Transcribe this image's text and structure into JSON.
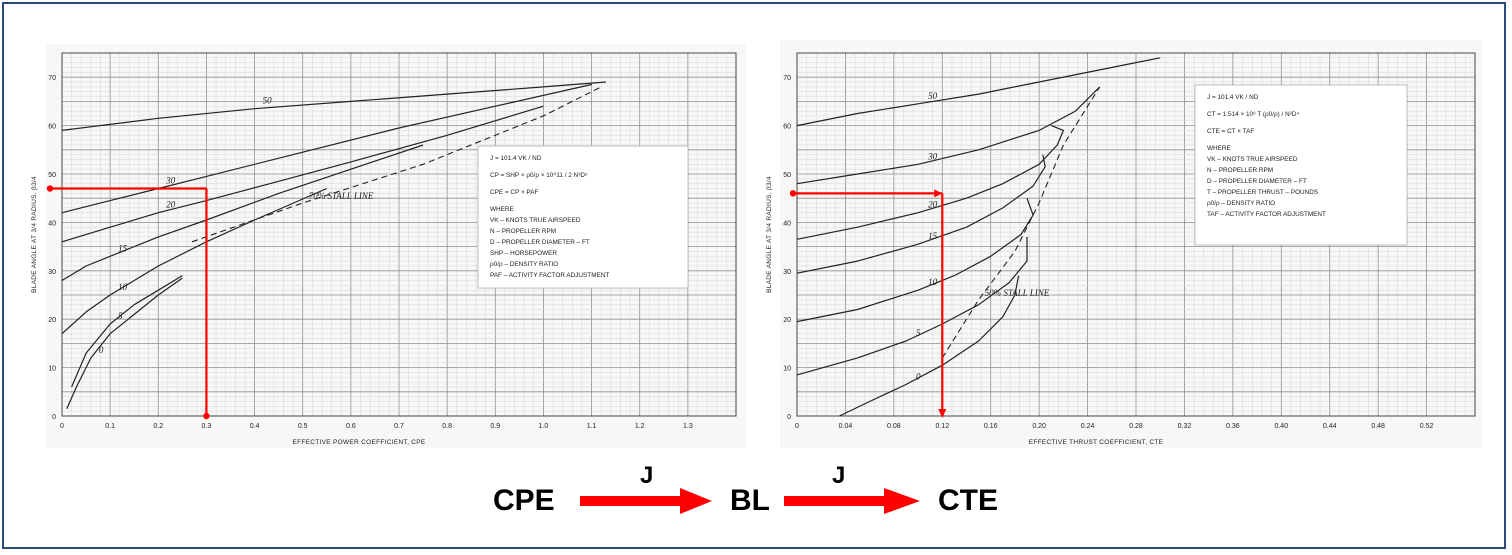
{
  "chart_data": [
    {
      "type": "line",
      "ylabel": "BLADE ANGLE AT 3/4 RADIUS, β3/4",
      "xlabel": "EFFECTIVE POWER COEFFICIENT, CPE",
      "xlim": [
        0,
        1.4
      ],
      "ylim": [
        0,
        75
      ],
      "x_ticks": [
        "0",
        "0.1",
        "0.2",
        "0.3",
        "0.4",
        "0.5",
        "0.6",
        "0.7",
        "0.8",
        "0.9",
        "1.0",
        "1.1",
        "1.2",
        "1.3"
      ],
      "y_ticks": [
        "0",
        "10",
        "20",
        "30",
        "40",
        "50",
        "60",
        "70"
      ],
      "series": [
        {
          "name": "50",
          "x": [
            0,
            0.2,
            0.4,
            0.6,
            0.8,
            1.0,
            1.13
          ],
          "y": [
            59,
            61.5,
            63.5,
            65,
            66.5,
            68,
            69
          ]
        },
        {
          "name": "30",
          "x": [
            0,
            0.1,
            0.2,
            0.3,
            0.5,
            0.7,
            0.9,
            1.1
          ],
          "y": [
            42,
            44.5,
            47,
            49.5,
            54.5,
            59.5,
            64,
            68.5
          ]
        },
        {
          "name": "20",
          "x": [
            0,
            0.1,
            0.2,
            0.3,
            0.45,
            0.6,
            0.8,
            1.0
          ],
          "y": [
            36,
            39,
            42,
            44.5,
            48.5,
            52.5,
            58,
            64
          ]
        },
        {
          "name": "15",
          "x": [
            0,
            0.05,
            0.1,
            0.2,
            0.3,
            0.45,
            0.6,
            0.75
          ],
          "y": [
            28,
            31,
            33,
            37,
            40.5,
            46,
            51,
            56
          ]
        },
        {
          "name": "10",
          "x": [
            0,
            0.05,
            0.1,
            0.15,
            0.2,
            0.3,
            0.4,
            0.55
          ],
          "y": [
            17,
            21.5,
            25,
            28,
            31,
            36,
            40.5,
            47
          ]
        },
        {
          "name": "5",
          "x": [
            0.02,
            0.05,
            0.1,
            0.15,
            0.2,
            0.25
          ],
          "y": [
            6,
            13,
            19,
            23,
            26,
            29
          ]
        },
        {
          "name": "0",
          "x": [
            0.01,
            0.03,
            0.06,
            0.1,
            0.15,
            0.2,
            0.25
          ],
          "y": [
            1.5,
            6,
            12,
            17,
            21,
            25,
            28.5
          ]
        }
      ],
      "stall_line": {
        "label": "70% STALL LINE",
        "x": [
          0.27,
          0.5,
          0.75,
          1.0,
          1.12
        ],
        "y": [
          36,
          44,
          52,
          62,
          68
        ]
      },
      "annotation": {
        "x": 0.3,
        "y": 47
      },
      "legend_lines": [
        "J = 101.4 VK / ND",
        "CP = SHP × ρ0/ρ × 10^11 / 2 N³D⁵",
        "CPE = CP × PAF",
        "WHERE",
        "VK – KNOTS TRUE AIRSPEED",
        "N – PROPELLER RPM",
        "D – PROPELLER DIAMETER – FT",
        "SHP – HORSEPOWER",
        "ρ0/ρ – DENSITY RATIO",
        "PAF – ACTIVITY FACTOR ADJUSTMENT"
      ]
    },
    {
      "type": "line",
      "ylabel": "BLADE ANGLE AT 3/4 RADIUS, β3/4",
      "xlabel": "EFFECTIVE THRUST COEFFICIENT, CTE",
      "xlim": [
        0,
        0.56
      ],
      "ylim": [
        0,
        75
      ],
      "x_ticks": [
        "0",
        "0.04",
        "0.08",
        "0.12",
        "0.16",
        "0.20",
        "0.24",
        "0.28",
        "0.32",
        "0.36",
        "0.40",
        "0.44",
        "0.48",
        "0.52"
      ],
      "y_ticks": [
        "0",
        "10",
        "20",
        "30",
        "40",
        "50",
        "60",
        "70"
      ],
      "series": [
        {
          "name": "50",
          "x": [
            0,
            0.05,
            0.1,
            0.15,
            0.2,
            0.25,
            0.3
          ],
          "y": [
            60,
            62.5,
            64.5,
            66.5,
            69,
            71.5,
            74
          ]
        },
        {
          "name": "30",
          "x": [
            0,
            0.05,
            0.1,
            0.15,
            0.2,
            0.23,
            0.25
          ],
          "y": [
            48,
            50,
            52,
            55,
            59,
            63,
            68
          ]
        },
        {
          "name": "20",
          "x": [
            0,
            0.05,
            0.1,
            0.14,
            0.17,
            0.2,
            0.215,
            0.22,
            0.21
          ],
          "y": [
            36.5,
            39,
            42,
            45,
            48,
            52,
            56,
            59,
            60
          ]
        },
        {
          "name": "15",
          "x": [
            0,
            0.05,
            0.1,
            0.14,
            0.17,
            0.195,
            0.205,
            0.203
          ],
          "y": [
            29.5,
            32,
            35.5,
            39,
            43,
            47.5,
            51.5,
            54
          ]
        },
        {
          "name": "10",
          "x": [
            0,
            0.05,
            0.1,
            0.13,
            0.16,
            0.185,
            0.195,
            0.19
          ],
          "y": [
            19.5,
            22,
            26,
            29,
            33,
            37.5,
            41.5,
            45
          ]
        },
        {
          "name": "5",
          "x": [
            0,
            0.05,
            0.09,
            0.12,
            0.15,
            0.175,
            0.19,
            0.19
          ],
          "y": [
            8.5,
            12,
            15.5,
            19,
            23,
            27.5,
            32,
            37
          ]
        },
        {
          "name": "0",
          "x": [
            0.035,
            0.06,
            0.09,
            0.12,
            0.15,
            0.17,
            0.18,
            0.183
          ],
          "y": [
            0,
            3,
            6.5,
            10.5,
            15.5,
            20.5,
            25,
            29
          ]
        }
      ],
      "stall_line": {
        "label": "50% STALL LINE",
        "x": [
          0.12,
          0.15,
          0.18,
          0.2,
          0.22,
          0.25
        ],
        "y": [
          12,
          24,
          34,
          44,
          56,
          68
        ]
      },
      "annotation": {
        "x": 0.12,
        "y": 46
      },
      "legend_lines": [
        "J = 101.4 VK / ND",
        "CT = 1.514 × 10⁶ T (ρ0/ρ) / N²D⁴",
        "CTE = CT × TAF",
        "WHERE",
        "VK – KNOTS TRUE AIRSPEED",
        "N – PROPELLER RPM",
        "D – PROPELLER DIAMETER – FT",
        "T – PROPELLER THRUST – POUNDS",
        "ρ0/ρ – DENSITY RATIO",
        "TAF – ACTIVITY FACTOR ADJUSTMENT"
      ]
    }
  ],
  "flow": {
    "step1": "CPE",
    "j1": "J",
    "step2": "BL",
    "j2": "J",
    "step3": "CTE"
  },
  "colors": {
    "border": "#2e4a7d",
    "arrow": "#ff0000",
    "grid": "#b5b5b5",
    "curve": "#222222"
  }
}
